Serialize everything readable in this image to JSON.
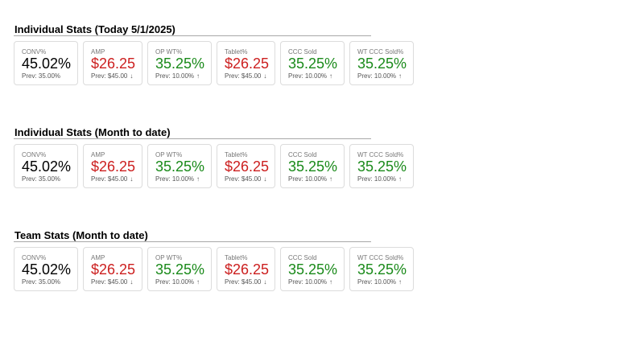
{
  "colors": {
    "neutral": "#000000",
    "negative": "#cc1f1f",
    "positive": "#1a8a1a"
  },
  "sections": [
    {
      "title": "Individual Stats (Today 5/1/2025)",
      "cards": [
        {
          "label": "CONV%",
          "value": "45.02%",
          "prev": "Prev: 35.00%",
          "arrow": "",
          "trend": "neutral"
        },
        {
          "label": "AMP",
          "value": "$26.25",
          "prev": "Prev: $45.00",
          "arrow": "↓",
          "trend": "negative"
        },
        {
          "label": "OP WT%",
          "value": "35.25%",
          "prev": "Prev: 10.00%",
          "arrow": "↑",
          "trend": "positive"
        },
        {
          "label": "Tablet%",
          "value": "$26.25",
          "prev": "Prev: $45.00",
          "arrow": "↓",
          "trend": "negative"
        },
        {
          "label": "CCC Sold",
          "value": "35.25%",
          "prev": "Prev: 10.00%",
          "arrow": "↑",
          "trend": "positive"
        },
        {
          "label": "WT CCC Sold%",
          "value": "35.25%",
          "prev": "Prev: 10.00%",
          "arrow": "↑",
          "trend": "positive"
        }
      ]
    },
    {
      "title": "Individual Stats (Month to date)",
      "cards": [
        {
          "label": "CONV%",
          "value": "45.02%",
          "prev": "Prev: 35.00%",
          "arrow": "",
          "trend": "neutral"
        },
        {
          "label": "AMP",
          "value": "$26.25",
          "prev": "Prev: $45.00",
          "arrow": "↓",
          "trend": "negative"
        },
        {
          "label": "OP WT%",
          "value": "35.25%",
          "prev": "Prev: 10.00%",
          "arrow": "↑",
          "trend": "positive"
        },
        {
          "label": "Tablet%",
          "value": "$26.25",
          "prev": "Prev: $45.00",
          "arrow": "↓",
          "trend": "negative"
        },
        {
          "label": "CCC Sold",
          "value": "35.25%",
          "prev": "Prev: 10.00%",
          "arrow": "↑",
          "trend": "positive"
        },
        {
          "label": "WT CCC Sold%",
          "value": "35.25%",
          "prev": "Prev: 10.00%",
          "arrow": "↑",
          "trend": "positive"
        }
      ]
    },
    {
      "title": "Team Stats (Month to date)",
      "cards": [
        {
          "label": "CONV%",
          "value": "45.02%",
          "prev": "Prev: 35.00%",
          "arrow": "",
          "trend": "neutral"
        },
        {
          "label": "AMP",
          "value": "$26.25",
          "prev": "Prev: $45.00",
          "arrow": "↓",
          "trend": "negative"
        },
        {
          "label": "OP WT%",
          "value": "35.25%",
          "prev": "Prev: 10.00%",
          "arrow": "↑",
          "trend": "positive"
        },
        {
          "label": "Tablet%",
          "value": "$26.25",
          "prev": "Prev: $45.00",
          "arrow": "↓",
          "trend": "negative"
        },
        {
          "label": "CCC Sold",
          "value": "35.25%",
          "prev": "Prev: 10.00%",
          "arrow": "↑",
          "trend": "positive"
        },
        {
          "label": "WT CCC Sold%",
          "value": "35.25%",
          "prev": "Prev: 10.00%",
          "arrow": "↑",
          "trend": "positive"
        }
      ]
    }
  ]
}
